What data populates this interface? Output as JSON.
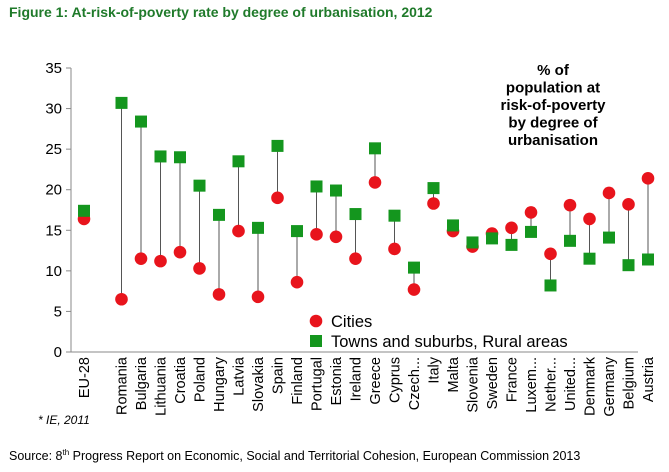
{
  "figure": {
    "title": "Figure 1: At-risk-of-poverty rate by degree of urbanisation, 2012",
    "source_prefix": "Source: 8",
    "source_sup": "th",
    "source_suffix": " Progress Report on Economic, Social and Territorial Cohesion, European Commission 2013",
    "footnote": "* IE, 2011"
  },
  "chart_data": {
    "type": "dot-range",
    "title": "At-risk-of-poverty rate by degree of urbanisation, 2012",
    "annotation": [
      "% of",
      "population at",
      "risk-of-poverty",
      "by degree of",
      "urbanisation"
    ],
    "ylim": [
      0,
      35
    ],
    "yticks": [
      0,
      5,
      10,
      15,
      20,
      25,
      30,
      35
    ],
    "categories": [
      "EU-28",
      "Romania",
      "Bulgaria",
      "Lithuania",
      "Croatia",
      "Poland",
      "Hungary",
      "Latvia",
      "Slovakia",
      "Spain",
      "Finland",
      "Portugal",
      "Estonia",
      "Ireland",
      "Greece",
      "Cyprus",
      "Czech...",
      "Italy",
      "Malta",
      "Slovenia",
      "Sweden",
      "France",
      "Luxem...",
      "Nether...",
      "United...",
      "Denmark",
      "Germany",
      "Belgium",
      "Austria"
    ],
    "series": [
      {
        "name": "Cities",
        "marker": "circle",
        "color": "#e8141c",
        "values": [
          16.4,
          6.5,
          11.5,
          11.2,
          12.3,
          10.3,
          7.1,
          14.9,
          6.8,
          19.0,
          8.6,
          14.5,
          14.2,
          11.5,
          20.9,
          12.7,
          7.7,
          18.3,
          14.9,
          13.0,
          14.6,
          15.3,
          17.2,
          12.1,
          18.1,
          16.4,
          19.6,
          18.2,
          21.4
        ]
      },
      {
        "name": "Towns and suburbs, Rural areas",
        "marker": "square",
        "color": "#14961e",
        "values": [
          17.4,
          30.7,
          28.4,
          24.1,
          24.0,
          20.5,
          16.9,
          23.5,
          15.3,
          25.4,
          14.9,
          20.4,
          19.9,
          17.0,
          25.1,
          16.8,
          10.4,
          20.2,
          15.6,
          13.5,
          14.0,
          13.2,
          14.8,
          8.2,
          13.7,
          11.5,
          14.1,
          10.7,
          11.4
        ]
      }
    ],
    "colors": {
      "cities": "#e8141c",
      "towns_rural": "#14961e",
      "axis": "#8a8a8a",
      "connector": "#555555"
    }
  }
}
